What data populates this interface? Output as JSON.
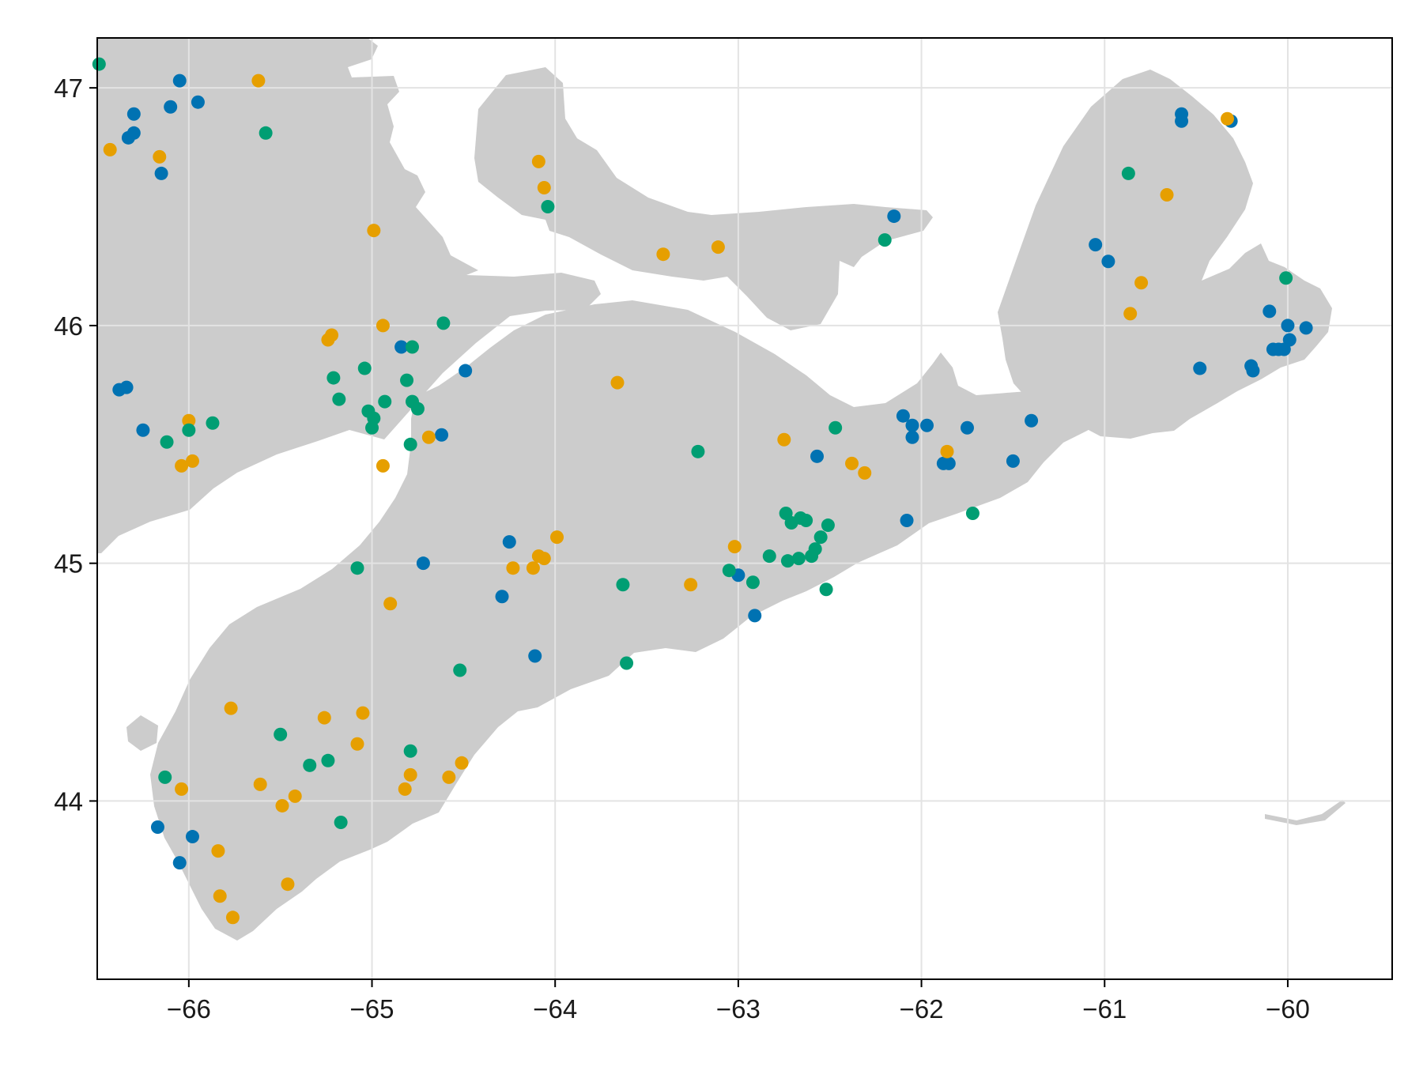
{
  "chart_data": {
    "type": "scatter",
    "title": "",
    "xlabel": "",
    "ylabel": "",
    "xlim": [
      -66.5,
      -59.43
    ],
    "ylim": [
      43.25,
      47.21
    ],
    "grid": true,
    "x_ticks": [
      -66,
      -65,
      -64,
      -63,
      -62,
      -61,
      -60
    ],
    "y_ticks": [
      44,
      45,
      46,
      47
    ],
    "x_tick_labels": [
      "−66",
      "−65",
      "−64",
      "−63",
      "−62",
      "−61",
      "−60"
    ],
    "y_tick_labels": [
      "44",
      "45",
      "46",
      "47"
    ],
    "land_color": "#cccccc",
    "grid_color": "#e3e3e3",
    "series": [
      {
        "color": "#0072b2",
        "points": [
          [
            -66.05,
            47.03
          ],
          [
            -66.3,
            46.89
          ],
          [
            -66.1,
            46.92
          ],
          [
            -65.95,
            46.94
          ],
          [
            -66.33,
            46.79
          ],
          [
            -66.3,
            46.81
          ],
          [
            -66.15,
            46.64
          ],
          [
            -66.38,
            45.73
          ],
          [
            -66.34,
            45.74
          ],
          [
            -66.25,
            45.56
          ],
          [
            -64.84,
            45.91
          ],
          [
            -64.49,
            45.81
          ],
          [
            -64.62,
            45.54
          ],
          [
            -64.25,
            45.09
          ],
          [
            -64.72,
            45.0
          ],
          [
            -64.29,
            44.86
          ],
          [
            -64.11,
            44.61
          ],
          [
            -66.17,
            43.89
          ],
          [
            -66.05,
            43.74
          ],
          [
            -65.98,
            43.85
          ],
          [
            -63.0,
            44.95
          ],
          [
            -62.91,
            44.78
          ],
          [
            -62.57,
            45.45
          ],
          [
            -62.1,
            45.62
          ],
          [
            -62.05,
            45.58
          ],
          [
            -62.05,
            45.53
          ],
          [
            -61.97,
            45.58
          ],
          [
            -61.88,
            45.42
          ],
          [
            -61.85,
            45.42
          ],
          [
            -61.75,
            45.57
          ],
          [
            -61.5,
            45.43
          ],
          [
            -61.4,
            45.6
          ],
          [
            -62.08,
            45.18
          ],
          [
            -62.15,
            46.46
          ],
          [
            -61.05,
            46.34
          ],
          [
            -60.98,
            46.27
          ],
          [
            -60.58,
            46.89
          ],
          [
            -60.58,
            46.86
          ],
          [
            -60.31,
            46.86
          ],
          [
            -60.1,
            46.06
          ],
          [
            -60.0,
            46.0
          ],
          [
            -59.9,
            45.99
          ],
          [
            -59.99,
            45.94
          ],
          [
            -60.08,
            45.9
          ],
          [
            -60.05,
            45.9
          ],
          [
            -60.02,
            45.9
          ],
          [
            -60.48,
            45.82
          ],
          [
            -60.2,
            45.83
          ],
          [
            -60.19,
            45.81
          ]
        ]
      },
      {
        "color": "#e69f00",
        "points": [
          [
            -66.43,
            46.74
          ],
          [
            -66.16,
            46.71
          ],
          [
            -65.62,
            47.03
          ],
          [
            -64.99,
            46.4
          ],
          [
            -64.94,
            46.0
          ],
          [
            -65.22,
            45.96
          ],
          [
            -65.24,
            45.94
          ],
          [
            -66.0,
            45.6
          ],
          [
            -66.04,
            45.41
          ],
          [
            -65.98,
            45.43
          ],
          [
            -64.94,
            45.41
          ],
          [
            -64.69,
            45.53
          ],
          [
            -64.09,
            46.69
          ],
          [
            -64.06,
            46.58
          ],
          [
            -63.41,
            46.3
          ],
          [
            -63.11,
            46.33
          ],
          [
            -63.66,
            45.76
          ],
          [
            -64.23,
            44.98
          ],
          [
            -64.09,
            45.03
          ],
          [
            -64.12,
            44.98
          ],
          [
            -64.06,
            45.02
          ],
          [
            -63.99,
            45.11
          ],
          [
            -64.9,
            44.83
          ],
          [
            -63.26,
            44.91
          ],
          [
            -63.02,
            45.07
          ],
          [
            -62.75,
            45.52
          ],
          [
            -62.38,
            45.42
          ],
          [
            -62.31,
            45.38
          ],
          [
            -61.86,
            45.47
          ],
          [
            -60.33,
            46.87
          ],
          [
            -60.66,
            46.55
          ],
          [
            -60.8,
            46.18
          ],
          [
            -60.86,
            46.05
          ],
          [
            -65.77,
            44.39
          ],
          [
            -65.26,
            44.35
          ],
          [
            -65.05,
            44.37
          ],
          [
            -65.08,
            44.24
          ],
          [
            -65.61,
            44.07
          ],
          [
            -65.49,
            43.98
          ],
          [
            -65.42,
            44.02
          ],
          [
            -64.82,
            44.05
          ],
          [
            -64.79,
            44.11
          ],
          [
            -64.58,
            44.1
          ],
          [
            -64.51,
            44.16
          ],
          [
            -66.04,
            44.05
          ],
          [
            -65.84,
            43.79
          ],
          [
            -65.83,
            43.6
          ],
          [
            -65.76,
            43.51
          ],
          [
            -65.46,
            43.65
          ]
        ]
      },
      {
        "color": "#009e73",
        "points": [
          [
            -66.49,
            47.1
          ],
          [
            -65.58,
            46.81
          ],
          [
            -64.04,
            46.5
          ],
          [
            -62.2,
            46.36
          ],
          [
            -64.61,
            46.01
          ],
          [
            -64.78,
            45.91
          ],
          [
            -65.21,
            45.78
          ],
          [
            -65.18,
            45.69
          ],
          [
            -65.04,
            45.82
          ],
          [
            -64.81,
            45.77
          ],
          [
            -64.78,
            45.68
          ],
          [
            -64.75,
            45.65
          ],
          [
            -64.93,
            45.68
          ],
          [
            -65.02,
            45.64
          ],
          [
            -64.99,
            45.61
          ],
          [
            -65.0,
            45.57
          ],
          [
            -64.79,
            45.5
          ],
          [
            -65.87,
            45.59
          ],
          [
            -66.0,
            45.56
          ],
          [
            -66.12,
            45.51
          ],
          [
            -65.08,
            44.98
          ],
          [
            -63.63,
            44.91
          ],
          [
            -63.61,
            44.58
          ],
          [
            -64.52,
            44.55
          ],
          [
            -63.22,
            45.47
          ],
          [
            -62.47,
            45.57
          ],
          [
            -61.72,
            45.21
          ],
          [
            -62.74,
            45.21
          ],
          [
            -62.71,
            45.17
          ],
          [
            -62.66,
            45.19
          ],
          [
            -62.63,
            45.18
          ],
          [
            -62.51,
            45.16
          ],
          [
            -62.55,
            45.11
          ],
          [
            -62.58,
            45.06
          ],
          [
            -62.6,
            45.03
          ],
          [
            -62.67,
            45.02
          ],
          [
            -62.73,
            45.01
          ],
          [
            -62.83,
            45.03
          ],
          [
            -62.92,
            44.92
          ],
          [
            -63.05,
            44.97
          ],
          [
            -62.52,
            44.89
          ],
          [
            -60.87,
            46.64
          ],
          [
            -60.01,
            46.2
          ],
          [
            -65.5,
            44.28
          ],
          [
            -65.24,
            44.17
          ],
          [
            -65.34,
            44.15
          ],
          [
            -64.79,
            44.21
          ],
          [
            -65.17,
            43.91
          ],
          [
            -66.13,
            44.1
          ]
        ]
      }
    ]
  }
}
